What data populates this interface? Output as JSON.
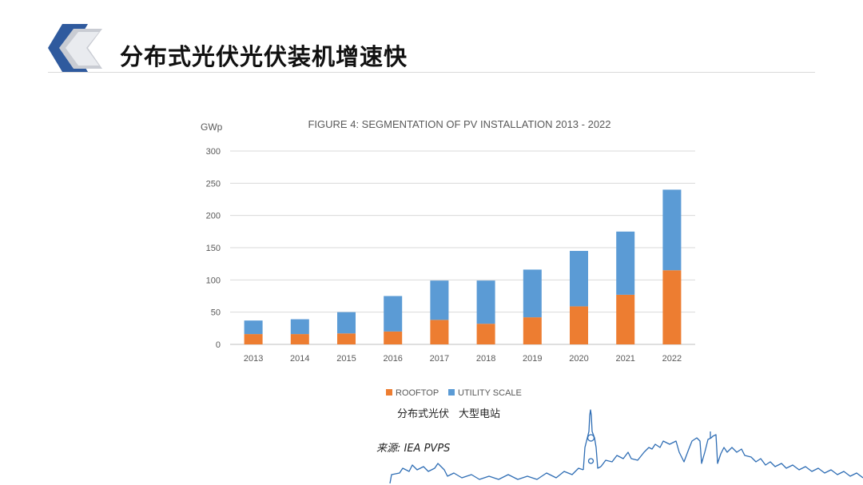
{
  "slide": {
    "title": "分布式光伏光伏装机增速快",
    "caption_left": "分布式光伏",
    "caption_right": "大型电站",
    "source": "来源: IEA PVPS"
  },
  "colors": {
    "rooftop": "#ed7d31",
    "utility": "#5b9bd5",
    "logo_blue": "#2f5a9e",
    "skyline": "#2e6db4"
  },
  "chart_data": {
    "type": "bar",
    "stacked": true,
    "title": "FIGURE 4: SEGMENTATION OF PV INSTALLATION 2013 - 2022",
    "ylabel": "GWp",
    "xlabel": "",
    "categories": [
      "2013",
      "2014",
      "2015",
      "2016",
      "2017",
      "2018",
      "2019",
      "2020",
      "2021",
      "2022"
    ],
    "series": [
      {
        "name": "ROOFTOP",
        "values": [
          16,
          16,
          17,
          20,
          38,
          32,
          42,
          59,
          77,
          115
        ]
      },
      {
        "name": "UTILITY SCALE",
        "values": [
          21,
          23,
          33,
          55,
          61,
          67,
          74,
          86,
          98,
          125
        ]
      }
    ],
    "ylim": [
      0,
      300
    ],
    "yticks": [
      "0",
      "50",
      "100",
      "150",
      "200",
      "250",
      "300"
    ],
    "grid": true,
    "legend": "bottom"
  }
}
